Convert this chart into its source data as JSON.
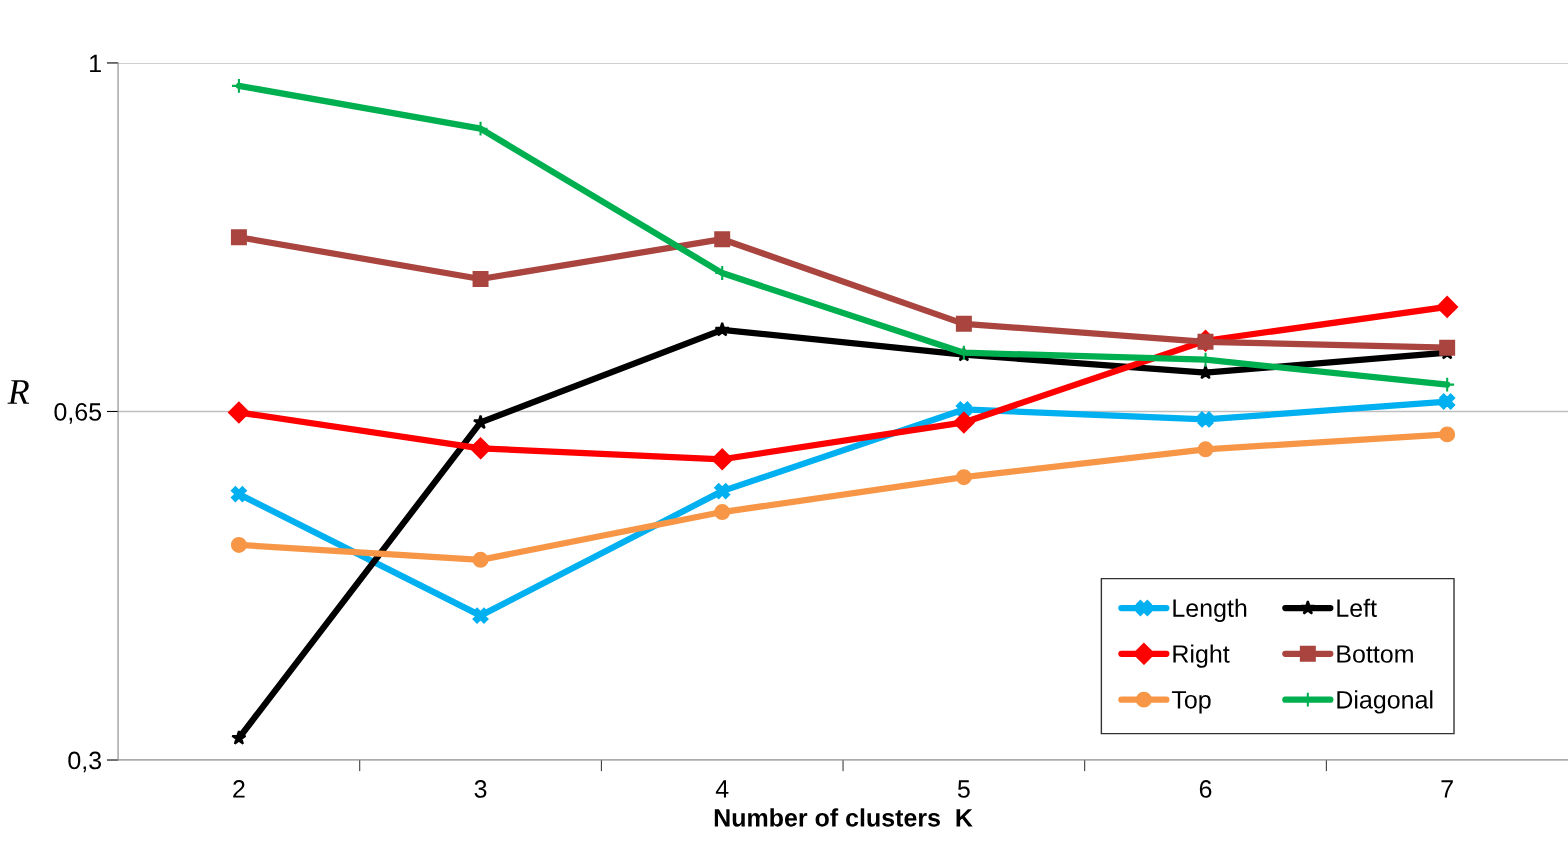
{
  "chart_data": {
    "type": "line",
    "xlabel": "Number of clusters  K",
    "ylabel": "R",
    "categories": [
      "2",
      "3",
      "4",
      "5",
      "6",
      "7"
    ],
    "ylim": [
      0.3,
      1
    ],
    "yticks": [
      {
        "value": 0.3,
        "label": "0,3"
      },
      {
        "value": 0.65,
        "label": "0,65"
      },
      {
        "value": 1,
        "label": "1"
      }
    ],
    "grid": "y",
    "legend": "bottom right",
    "line_style": "solid",
    "series": [
      {
        "name": "Length",
        "color": "#00b0f0",
        "marker": "cross",
        "values": [
          0.567,
          0.445,
          0.57,
          0.652,
          0.642,
          0.66
        ]
      },
      {
        "name": "Left",
        "color": "#000000",
        "marker": "star",
        "values": [
          0.322,
          0.639,
          0.732,
          0.707,
          0.689,
          0.709
        ]
      },
      {
        "name": "Right",
        "color": "#ff0000",
        "marker": "diamond",
        "values": [
          0.649,
          0.613,
          0.602,
          0.639,
          0.721,
          0.755
        ]
      },
      {
        "name": "Bottom",
        "color": "#a9443f",
        "marker": "square",
        "values": [
          0.825,
          0.783,
          0.823,
          0.738,
          0.72,
          0.714
        ]
      },
      {
        "name": "Top",
        "color": "#f79646",
        "marker": "circle",
        "values": [
          0.516,
          0.501,
          0.549,
          0.584,
          0.612,
          0.627
        ]
      },
      {
        "name": "Diagonal",
        "color": "#00b050",
        "marker": "plus",
        "values": [
          0.977,
          0.934,
          0.789,
          0.709,
          0.702,
          0.677
        ]
      }
    ]
  }
}
